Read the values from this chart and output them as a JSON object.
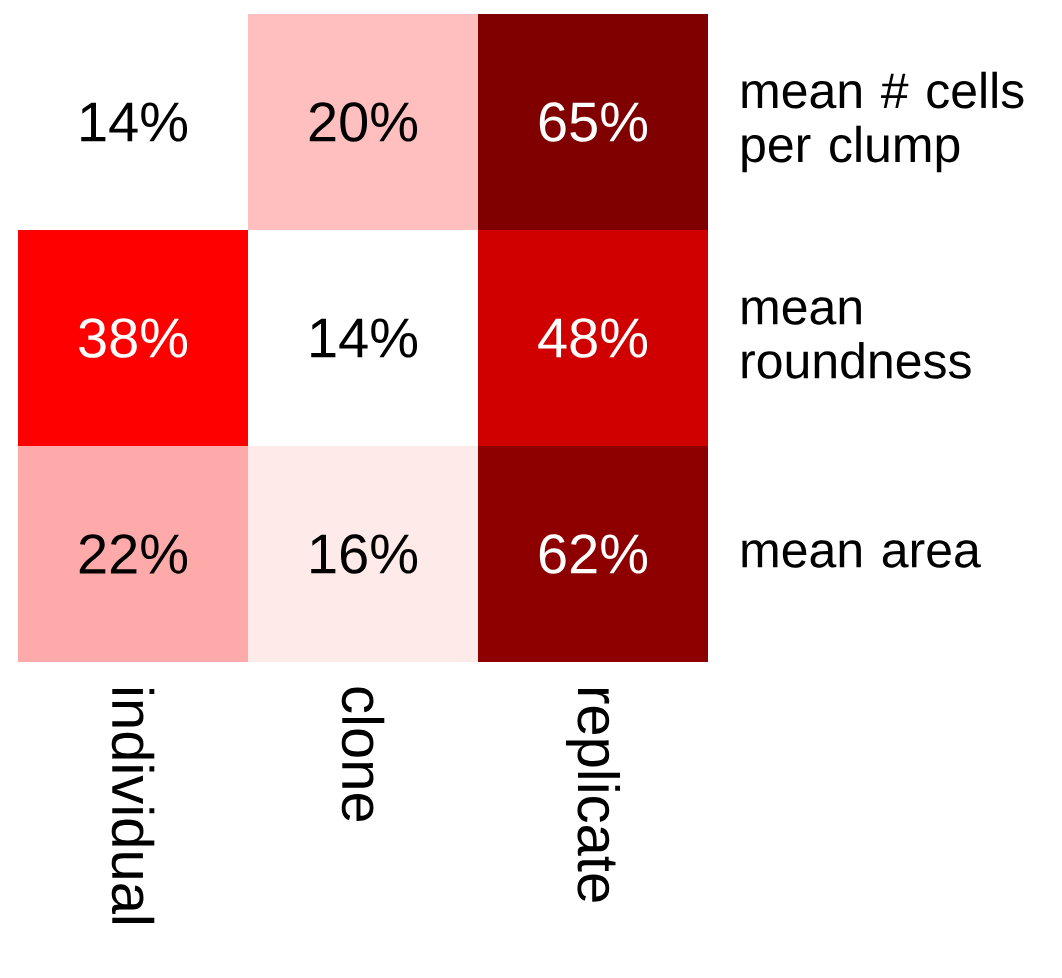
{
  "chart_data": {
    "type": "heatmap",
    "categories": [
      "individual",
      "clone",
      "replicate"
    ],
    "y_categories": [
      "mean # cells per clump",
      "mean roundness",
      "mean area"
    ],
    "cells": [
      [
        14,
        20,
        65
      ],
      [
        38,
        14,
        48
      ],
      [
        22,
        16,
        62
      ]
    ],
    "cell_labels": [
      [
        "14%",
        "20%",
        "65%"
      ],
      [
        "38%",
        "14%",
        "48%"
      ],
      [
        "22%",
        "16%",
        "62%"
      ]
    ]
  }
}
